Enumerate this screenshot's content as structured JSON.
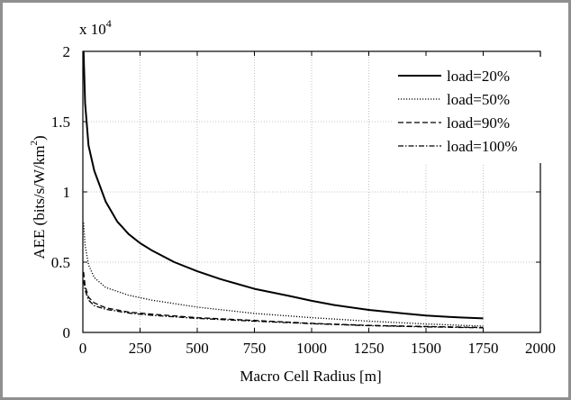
{
  "chart_data": {
    "type": "line",
    "xlabel": "Macro Cell Radius [m]",
    "ylabel_main": "AEE (bits/s/W/km",
    "ylabel_sup": "2",
    "ylabel_end": ")",
    "multiplier_base": "x 10",
    "multiplier_exp": "4",
    "xlim": [
      0,
      2000
    ],
    "ylim": [
      0,
      20000
    ],
    "x_ticks": [
      0,
      250,
      500,
      750,
      1000,
      1250,
      1500,
      1750,
      2000
    ],
    "x_tick_labels": [
      "0",
      "250",
      "500",
      "750",
      "1000",
      "1250",
      "1500",
      "1750",
      "2000"
    ],
    "y_ticks": [
      0,
      5000,
      10000,
      15000,
      20000
    ],
    "y_tick_labels": [
      "0",
      "0.5",
      "1",
      "1.5",
      "2"
    ],
    "grid": true,
    "legend_position": "top-right",
    "series": [
      {
        "name": "load=20%",
        "style": "solid",
        "x": [
          3,
          10,
          25,
          50,
          100,
          150,
          200,
          250,
          300,
          400,
          500,
          600,
          750,
          900,
          1000,
          1100,
          1250,
          1400,
          1500,
          1600,
          1750
        ],
        "values": [
          20000,
          16300,
          13300,
          11500,
          9300,
          7900,
          7000,
          6350,
          5850,
          5000,
          4350,
          3800,
          3100,
          2600,
          2250,
          1950,
          1600,
          1350,
          1200,
          1100,
          1000
        ]
      },
      {
        "name": "load=50%",
        "style": "dotted",
        "x": [
          3,
          10,
          25,
          50,
          100,
          200,
          300,
          500,
          750,
          1000,
          1250,
          1500,
          1750
        ],
        "values": [
          7800,
          6200,
          4800,
          3900,
          3200,
          2650,
          2300,
          1800,
          1350,
          1050,
          800,
          600,
          450
        ]
      },
      {
        "name": "load=90%",
        "style": "dashed",
        "x": [
          3,
          10,
          25,
          50,
          100,
          200,
          300,
          500,
          750,
          1000,
          1250,
          1500,
          1750
        ],
        "values": [
          4300,
          3300,
          2500,
          2100,
          1750,
          1450,
          1300,
          1050,
          850,
          650,
          500,
          420,
          350
        ]
      },
      {
        "name": "load=100%",
        "style": "dashdot",
        "x": [
          3,
          10,
          25,
          50,
          100,
          200,
          300,
          500,
          750,
          1000,
          1250,
          1500,
          1750
        ],
        "values": [
          3700,
          3000,
          2300,
          1900,
          1650,
          1380,
          1220,
          1000,
          800,
          620,
          480,
          400,
          330
        ]
      }
    ]
  }
}
